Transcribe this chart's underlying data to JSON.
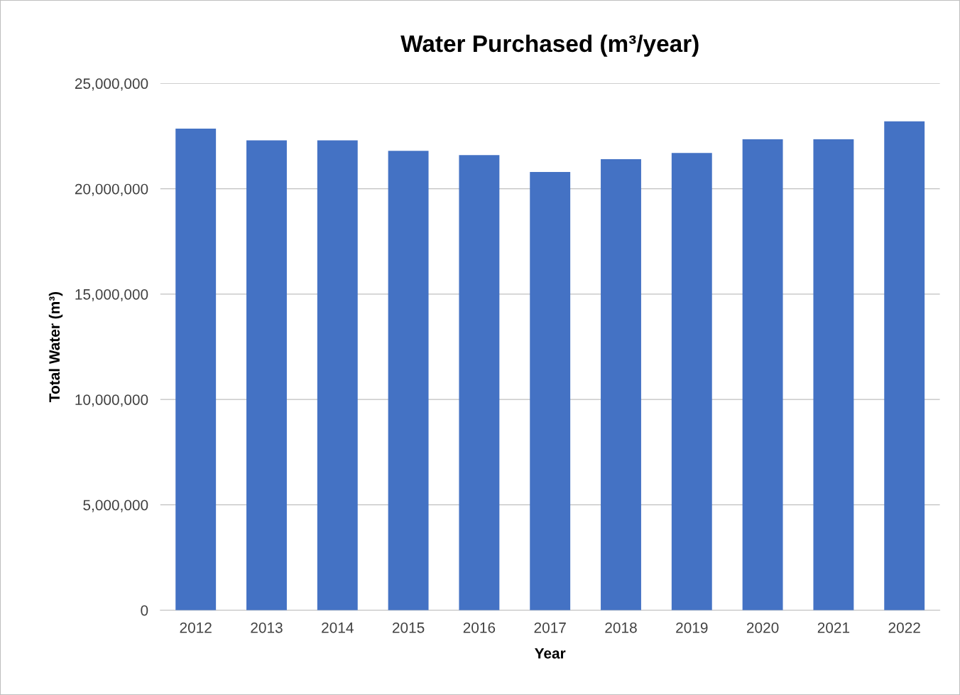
{
  "chart_data": {
    "type": "bar",
    "title": "Water Purchased (m³/year)",
    "xlabel": "Year",
    "ylabel": "Total Water (m³)",
    "categories": [
      "2012",
      "2013",
      "2014",
      "2015",
      "2016",
      "2017",
      "2018",
      "2019",
      "2020",
      "2021",
      "2022"
    ],
    "values": [
      22850000,
      22300000,
      22300000,
      21800000,
      21600000,
      20800000,
      21400000,
      21700000,
      22350000,
      22350000,
      23200000
    ],
    "color": "#4472c4",
    "ylim": [
      0,
      25000000
    ],
    "yticks": [
      {
        "value": 0,
        "label": "0"
      },
      {
        "value": 5000000,
        "label": "5,000,000"
      },
      {
        "value": 10000000,
        "label": "10,000,000"
      },
      {
        "value": 15000000,
        "label": "15,000,000"
      },
      {
        "value": 20000000,
        "label": "20,000,000"
      },
      {
        "value": 25000000,
        "label": "25,000,000"
      }
    ],
    "grid": "y"
  }
}
